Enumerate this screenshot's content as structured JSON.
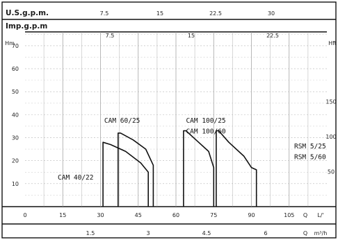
{
  "chart_data": {
    "type": "line",
    "grid": true,
    "top_scales": [
      {
        "label": "U.S.g.p.m.",
        "ticks": [
          "7.5",
          "15",
          "22.5",
          "30"
        ],
        "tick_q": [
          28.4,
          56.8,
          85.2,
          113.6
        ]
      },
      {
        "label": "Imp.g.p.m",
        "ticks": [
          "7.5",
          "15",
          "22.5"
        ],
        "tick_q": [
          34.1,
          68.2,
          102.3
        ]
      }
    ],
    "y_left": {
      "unit": "Hm",
      "ticks": [
        "10",
        "20",
        "30",
        "40",
        "50",
        "60",
        "70"
      ],
      "tick_values": [
        10,
        20,
        30,
        40,
        50,
        60,
        70
      ],
      "range": [
        0,
        76
      ]
    },
    "y_right": {
      "unit": "Hft",
      "ticks": [
        "50",
        "100",
        "150"
      ],
      "tick_values": [
        15.24,
        30.48,
        45.72
      ]
    },
    "x_primary": {
      "ticks": [
        "0",
        "15",
        "30",
        "45",
        "60",
        "75",
        "90",
        "105"
      ],
      "tick_values": [
        0,
        15,
        30,
        45,
        60,
        75,
        90,
        105
      ],
      "range": [
        0,
        120
      ],
      "axis_marks": [
        "Q",
        "L/'"
      ]
    },
    "x_secondary": {
      "ticks": [
        "1.5",
        "3",
        "4.5",
        "6"
      ],
      "tick_q": [
        25,
        50,
        75,
        100
      ],
      "axis_marks": [
        "Q",
        "m³/h"
      ]
    },
    "series": [
      {
        "name": "CAM 40/22",
        "x": [
          31,
          31,
          34,
          40,
          46,
          49,
          49
        ],
        "y": [
          0,
          28,
          27,
          24,
          19,
          15,
          0
        ]
      },
      {
        "name": "CAM 60/25",
        "x": [
          37,
          37,
          38,
          43,
          48,
          51,
          51
        ],
        "y": [
          0,
          32,
          32,
          29,
          25,
          18,
          0
        ]
      },
      {
        "name": "CAM 100/25 CAM 100/60",
        "x": [
          63,
          63,
          64,
          68,
          73,
          75,
          75
        ],
        "y": [
          0,
          33,
          33,
          29,
          24,
          17,
          0
        ]
      },
      {
        "name": "RSM 5/25 RSM 5/60",
        "x": [
          76,
          76,
          77,
          81,
          87,
          90,
          92,
          92
        ],
        "y": [
          0,
          33,
          33,
          28,
          22,
          17,
          16,
          0
        ]
      }
    ],
    "annotations": [
      {
        "text": "CAM 60/25",
        "x": 31.5,
        "y": 36.5
      },
      {
        "text": "CAM  100/25",
        "x": 64,
        "y": 36.5
      },
      {
        "text": "CAM  100/60",
        "x": 64,
        "y": 31.8
      },
      {
        "text": "RSM  5/25",
        "x": 107,
        "y": 25.3
      },
      {
        "text": "RSM  5/60",
        "x": 107,
        "y": 20.6
      },
      {
        "text": "CAM 40/22",
        "x": 13,
        "y": 11.8
      }
    ]
  }
}
